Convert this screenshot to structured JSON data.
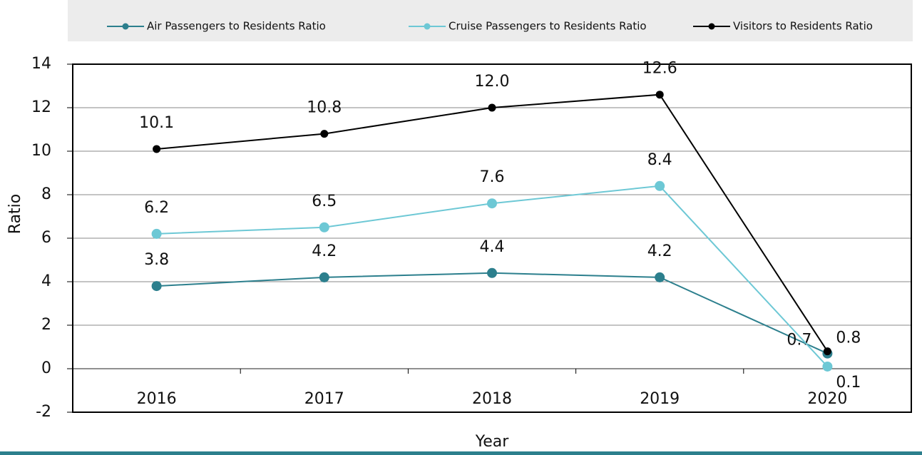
{
  "chart_data": {
    "type": "line",
    "categories": [
      "2016",
      "2017",
      "2018",
      "2019",
      "2020"
    ],
    "series": [
      {
        "name": "Air Passengers to Residents Ratio",
        "color": "#2c7f8d",
        "values": [
          3.8,
          4.2,
          4.4,
          4.2,
          0.7
        ],
        "value_labels": [
          "3.8",
          "4.2",
          "4.4",
          "4.2",
          "0.7"
        ]
      },
      {
        "name": "Cruise Passengers to Residents Ratio",
        "color": "#6dc8d5",
        "values": [
          6.2,
          6.5,
          7.6,
          8.4,
          0.1
        ],
        "value_labels": [
          "6.2",
          "6.5",
          "7.6",
          "8.4",
          "0.1"
        ]
      },
      {
        "name": "Visitors to Residents Ratio",
        "color": "#000000",
        "values": [
          10.1,
          10.8,
          12.0,
          12.6,
          0.8
        ],
        "value_labels": [
          "10.1",
          "10.8",
          "12.0",
          "12.6",
          "0.8"
        ]
      }
    ],
    "x_label": "Year",
    "y_label": "Ratio",
    "ylim": [
      -2,
      14
    ],
    "yticks": [
      -2,
      0,
      2,
      4,
      6,
      8,
      10,
      12,
      14
    ],
    "grid": true,
    "legend": "top"
  }
}
